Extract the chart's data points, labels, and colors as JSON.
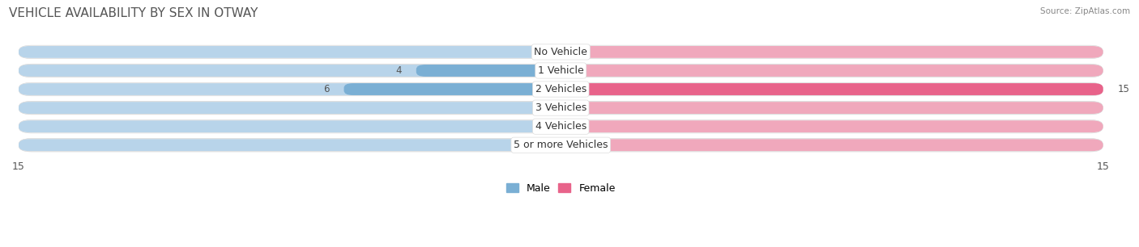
{
  "title": "VEHICLE AVAILABILITY BY SEX IN OTWAY",
  "source": "Source: ZipAtlas.com",
  "categories": [
    "No Vehicle",
    "1 Vehicle",
    "2 Vehicles",
    "3 Vehicles",
    "4 Vehicles",
    "5 or more Vehicles"
  ],
  "male_values": [
    0,
    4,
    6,
    0,
    0,
    0
  ],
  "female_values": [
    0,
    0,
    15,
    0,
    0,
    0
  ],
  "male_color": "#7aafd4",
  "male_color_light": "#b8d4ea",
  "female_color": "#e8638a",
  "female_color_light": "#f0a8bc",
  "male_label": "Male",
  "female_label": "Female",
  "xlim": 15,
  "background_color": "#ffffff",
  "row_bg_odd": "#f0f0f0",
  "row_bg_even": "#e8e8e8",
  "title_fontsize": 11,
  "source_fontsize": 7.5,
  "label_fontsize": 9,
  "value_fontsize": 8.5,
  "axis_fontsize": 9,
  "figsize": [
    14.06,
    3.06
  ],
  "dpi": 100
}
